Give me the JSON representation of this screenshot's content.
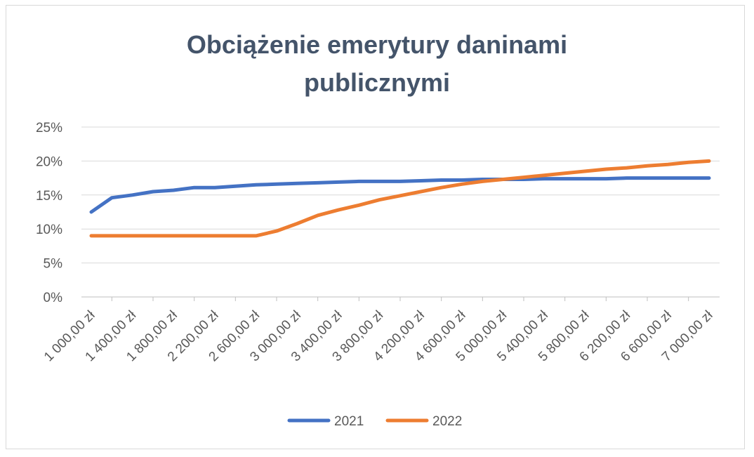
{
  "chart_data": {
    "type": "line",
    "title_lines": [
      "Obciążenie emerytury daninami",
      "publicznymi"
    ],
    "x": [
      1000,
      1200,
      1400,
      1600,
      1800,
      2000,
      2200,
      2400,
      2600,
      2800,
      3000,
      3200,
      3400,
      3600,
      3800,
      4000,
      4200,
      4400,
      4600,
      4800,
      5000,
      5200,
      5400,
      5600,
      5800,
      6000,
      6200,
      6400,
      6600,
      6800,
      7000
    ],
    "x_tick_labels": [
      "1 000,00 zł",
      "1 400,00 zł",
      "1 800,00 zł",
      "2 200,00 zł",
      "2 600,00 zł",
      "3 000,00 zł",
      "3 400,00 zł",
      "3 800,00 zł",
      "4 200,00 zł",
      "4 600,00 zł",
      "5 000,00 zł",
      "5 400,00 zł",
      "5 800,00 zł",
      "6 200,00 zł",
      "6 600,00 zł",
      "7 000,00 zł"
    ],
    "y_tick_labels": [
      "0%",
      "5%",
      "10%",
      "15%",
      "20%",
      "25%"
    ],
    "ylim": [
      0,
      25
    ],
    "series": [
      {
        "name": "2021",
        "color": "#4472c4",
        "values": [
          12.5,
          14.6,
          15.0,
          15.5,
          15.7,
          16.1,
          16.1,
          16.3,
          16.5,
          16.6,
          16.7,
          16.8,
          16.9,
          17.0,
          17.0,
          17.0,
          17.1,
          17.2,
          17.2,
          17.3,
          17.3,
          17.3,
          17.4,
          17.4,
          17.4,
          17.4,
          17.5,
          17.5,
          17.5,
          17.5,
          17.5
        ]
      },
      {
        "name": "2022",
        "color": "#ed7d31",
        "values": [
          9.0,
          9.0,
          9.0,
          9.0,
          9.0,
          9.0,
          9.0,
          9.0,
          9.0,
          9.7,
          10.8,
          12.0,
          12.8,
          13.5,
          14.3,
          14.9,
          15.5,
          16.1,
          16.6,
          17.0,
          17.3,
          17.6,
          17.9,
          18.2,
          18.5,
          18.8,
          19.0,
          19.3,
          19.5,
          19.8,
          20.0
        ]
      }
    ],
    "grid": true,
    "legend_position": "bottom"
  }
}
